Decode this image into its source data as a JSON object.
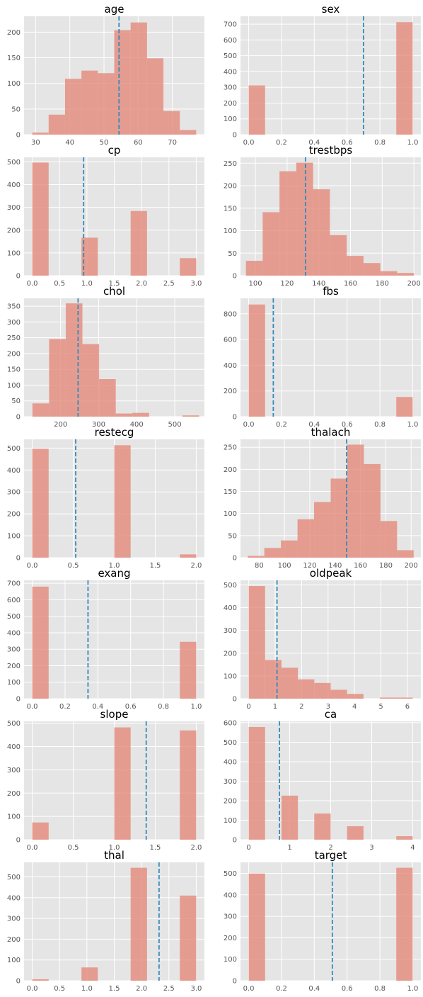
{
  "chart_data": [
    {
      "type": "bar",
      "title": "age",
      "xlim": [
        26.6,
        79.4
      ],
      "ylim": [
        0,
        231
      ],
      "xticks": [
        "30",
        "40",
        "50",
        "60",
        "70"
      ],
      "yticks": [
        "0",
        "50",
        "100",
        "150",
        "200"
      ],
      "bins": [
        [
          29,
          33.8,
          4
        ],
        [
          33.8,
          38.6,
          39
        ],
        [
          38.6,
          43.4,
          109
        ],
        [
          43.4,
          48.2,
          125
        ],
        [
          48.2,
          53,
          120
        ],
        [
          53,
          57.8,
          204
        ],
        [
          57.8,
          62.6,
          219
        ],
        [
          62.6,
          67.4,
          149
        ],
        [
          67.4,
          72.2,
          46
        ],
        [
          72.2,
          77,
          9
        ]
      ],
      "mean": 54.4
    },
    {
      "type": "bar",
      "title": "sex",
      "xlim": [
        -0.05,
        1.05
      ],
      "ylim": [
        0,
        750
      ],
      "xticks": [
        "0.0",
        "0.2",
        "0.4",
        "0.6",
        "0.8",
        "1.0"
      ],
      "yticks": [
        "0",
        "100",
        "200",
        "300",
        "400",
        "500",
        "600",
        "700"
      ],
      "bins": [
        [
          0,
          0.1,
          312
        ],
        [
          0.9,
          1,
          713
        ]
      ],
      "mean": 0.7
    },
    {
      "type": "bar",
      "title": "cp",
      "xlim": [
        -0.15,
        3.15
      ],
      "ylim": [
        0,
        520
      ],
      "xticks": [
        "0.0",
        "0.5",
        "1.0",
        "1.5",
        "2.0",
        "2.5",
        "3.0"
      ],
      "yticks": [
        "0",
        "100",
        "200",
        "300",
        "400",
        "500"
      ],
      "bins": [
        [
          0,
          0.3,
          497
        ],
        [
          0.9,
          1.2,
          167
        ],
        [
          1.8,
          2.1,
          284
        ],
        [
          2.7,
          3,
          77
        ]
      ],
      "mean": 0.94
    },
    {
      "type": "bar",
      "title": "trestbps",
      "xlim": [
        90.6,
        204.4
      ],
      "ylim": [
        0,
        263
      ],
      "xticks": [
        "100",
        "120",
        "140",
        "160",
        "180",
        "200"
      ],
      "yticks": [
        "0",
        "50",
        "100",
        "150",
        "200",
        "250"
      ],
      "bins": [
        [
          94,
          104.6,
          33
        ],
        [
          104.6,
          115.2,
          141
        ],
        [
          115.2,
          125.8,
          232
        ],
        [
          125.8,
          136.4,
          251
        ],
        [
          136.4,
          147,
          192
        ],
        [
          147,
          157.6,
          90
        ],
        [
          157.6,
          168.2,
          44
        ],
        [
          168.2,
          178.8,
          28
        ],
        [
          178.8,
          189.4,
          10
        ],
        [
          189.4,
          200,
          6
        ]
      ],
      "mean": 131.6
    },
    {
      "type": "bar",
      "title": "chol",
      "xlim": [
        104,
        578
      ],
      "ylim": [
        0,
        375
      ],
      "xticks": [
        "200",
        "300",
        "400",
        "500"
      ],
      "yticks": [
        "0",
        "50",
        "100",
        "150",
        "200",
        "250",
        "300",
        "350"
      ],
      "bins": [
        [
          126,
          169.8,
          42
        ],
        [
          169.8,
          213.6,
          246
        ],
        [
          213.6,
          257.4,
          359
        ],
        [
          257.4,
          301.2,
          230
        ],
        [
          301.2,
          345,
          119
        ],
        [
          345,
          388.8,
          10
        ],
        [
          388.8,
          432.6,
          12
        ],
        [
          432.6,
          476.4,
          0
        ],
        [
          476.4,
          520.2,
          0
        ],
        [
          520.2,
          564,
          4
        ]
      ],
      "mean": 246
    },
    {
      "type": "bar",
      "title": "fbs",
      "xlim": [
        -0.05,
        1.05
      ],
      "ylim": [
        0,
        920
      ],
      "xticks": [
        "0.0",
        "0.2",
        "0.4",
        "0.6",
        "0.8",
        "1.0"
      ],
      "yticks": [
        "0",
        "200",
        "400",
        "600",
        "800"
      ],
      "bins": [
        [
          0,
          0.1,
          872
        ],
        [
          0.9,
          1,
          153
        ]
      ],
      "mean": 0.15
    },
    {
      "type": "bar",
      "title": "restecg",
      "xlim": [
        -0.1,
        2.1
      ],
      "ylim": [
        0,
        540
      ],
      "xticks": [
        "0.0",
        "0.5",
        "1.0",
        "1.5",
        "2.0"
      ],
      "yticks": [
        "0",
        "100",
        "200",
        "300",
        "400",
        "500"
      ],
      "bins": [
        [
          0,
          0.2,
          497
        ],
        [
          1,
          1.2,
          513
        ],
        [
          1.8,
          2,
          15
        ]
      ],
      "mean": 0.53
    },
    {
      "type": "bar",
      "title": "thalach",
      "xlim": [
        65.3,
        207.7
      ],
      "ylim": [
        0,
        268
      ],
      "xticks": [
        "80",
        "100",
        "120",
        "140",
        "160",
        "180",
        "200"
      ],
      "yticks": [
        "0",
        "50",
        "100",
        "150",
        "200",
        "250"
      ],
      "bins": [
        [
          71,
          84.1,
          4
        ],
        [
          84.1,
          97.2,
          22
        ],
        [
          97.2,
          110.3,
          39
        ],
        [
          110.3,
          123.4,
          87
        ],
        [
          123.4,
          136.5,
          126
        ],
        [
          136.5,
          149.6,
          179
        ],
        [
          149.6,
          162.7,
          256
        ],
        [
          162.7,
          175.8,
          212
        ],
        [
          175.8,
          188.9,
          83
        ],
        [
          188.9,
          202,
          17
        ]
      ],
      "mean": 149.1
    },
    {
      "type": "bar",
      "title": "exang",
      "xlim": [
        -0.05,
        1.05
      ],
      "ylim": [
        0,
        718
      ],
      "xticks": [
        "0.0",
        "0.2",
        "0.4",
        "0.6",
        "0.8",
        "1.0"
      ],
      "yticks": [
        "0",
        "100",
        "200",
        "300",
        "400",
        "500",
        "600",
        "700"
      ],
      "bins": [
        [
          0,
          0.1,
          680
        ],
        [
          0.9,
          1,
          345
        ]
      ],
      "mean": 0.34
    },
    {
      "type": "bar",
      "title": "oldpeak",
      "xlim": [
        -0.31,
        6.51
      ],
      "ylim": [
        0,
        520
      ],
      "xticks": [
        "0",
        "1",
        "2",
        "3",
        "4",
        "5",
        "6"
      ],
      "yticks": [
        "0",
        "100",
        "200",
        "300",
        "400",
        "500"
      ],
      "bins": [
        [
          0,
          0.62,
          495
        ],
        [
          0.62,
          1.24,
          170
        ],
        [
          1.24,
          1.86,
          136
        ],
        [
          1.86,
          2.48,
          85
        ],
        [
          2.48,
          3.1,
          69
        ],
        [
          3.1,
          3.72,
          39
        ],
        [
          3.72,
          4.34,
          21
        ],
        [
          4.34,
          4.96,
          0
        ],
        [
          4.96,
          5.58,
          5
        ],
        [
          5.58,
          6.2,
          5
        ]
      ],
      "mean": 1.07
    },
    {
      "type": "bar",
      "title": "slope",
      "xlim": [
        -0.1,
        2.1
      ],
      "ylim": [
        0,
        508
      ],
      "xticks": [
        "0.0",
        "0.5",
        "1.0",
        "1.5",
        "2.0"
      ],
      "yticks": [
        "0",
        "100",
        "200",
        "300",
        "400",
        "500"
      ],
      "bins": [
        [
          0,
          0.2,
          74
        ],
        [
          1,
          1.2,
          482
        ],
        [
          1.8,
          2,
          469
        ]
      ],
      "mean": 1.39
    },
    {
      "type": "bar",
      "title": "ca",
      "xlim": [
        -0.2,
        4.2
      ],
      "ylim": [
        0,
        607
      ],
      "xticks": [
        "0",
        "1",
        "2",
        "3",
        "4"
      ],
      "yticks": [
        "0",
        "100",
        "200",
        "300",
        "400",
        "500",
        "600"
      ],
      "bins": [
        [
          0,
          0.4,
          578
        ],
        [
          0.8,
          1.2,
          226
        ],
        [
          1.6,
          2,
          134
        ],
        [
          2.4,
          2.8,
          69
        ],
        [
          3.6,
          4,
          18
        ]
      ],
      "mean": 0.75
    },
    {
      "type": "bar",
      "title": "thal",
      "xlim": [
        -0.15,
        3.15
      ],
      "ylim": [
        0,
        570
      ],
      "xticks": [
        "0.0",
        "0.5",
        "1.0",
        "1.5",
        "2.0",
        "2.5",
        "3.0"
      ],
      "yticks": [
        "0",
        "100",
        "200",
        "300",
        "400",
        "500"
      ],
      "bins": [
        [
          0,
          0.3,
          7
        ],
        [
          0.9,
          1.2,
          64
        ],
        [
          1.8,
          2.1,
          544
        ],
        [
          2.7,
          3,
          410
        ]
      ],
      "mean": 2.32
    },
    {
      "type": "bar",
      "title": "target",
      "xlim": [
        -0.05,
        1.05
      ],
      "ylim": [
        0,
        551
      ],
      "xticks": [
        "0.0",
        "0.2",
        "0.4",
        "0.6",
        "0.8",
        "1.0"
      ],
      "yticks": [
        "0",
        "100",
        "200",
        "300",
        "400",
        "500"
      ],
      "bins": [
        [
          0,
          0.1,
          499
        ],
        [
          0.9,
          1,
          526
        ]
      ],
      "mean": 0.51
    }
  ],
  "colors": {
    "bar": "#e58a7a",
    "mean_line": "#348abd",
    "panel_bg": "#e5e5e5",
    "grid": "#ffffff",
    "tick_text": "#555555",
    "title_text": "#000000"
  }
}
